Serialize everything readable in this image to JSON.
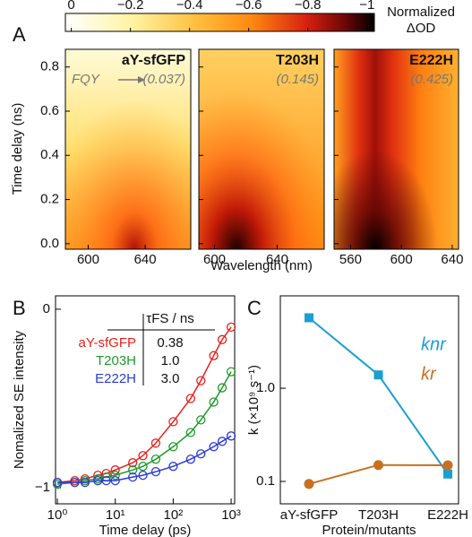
{
  "chart_data": [
    {
      "type": "heatmap",
      "panel_letter": "A",
      "colorbar_label": [
        "Normalized",
        "ΔOD"
      ],
      "clim": [
        0.02,
        -1.025
      ],
      "cticks": [
        0,
        {
          "value": -0.2,
          "label": "−0.2"
        },
        {
          "value": -0.4,
          "label": "−0.4"
        },
        {
          "value": -0.6,
          "label": "−0.6"
        },
        {
          "value": -0.8,
          "label": "−0.8"
        },
        {
          "value": -1,
          "label": "−1"
        }
      ],
      "ylabel": "Time delay (ns)",
      "xlabel": "Wavelength (nm)",
      "ylim": [
        -0.025,
        0.88
      ],
      "yticks": [
        {
          "value": 0,
          "label": "0.0"
        },
        0.2,
        0.4,
        0.6,
        0.8
      ],
      "fqy_label": "FQY",
      "panels": [
        {
          "title": "aY-sfGFP",
          "annotation": "(0.037)",
          "xlim": [
            584,
            672
          ],
          "xticks": [
            600,
            640
          ]
        },
        {
          "title": "T203H",
          "annotation": "(0.145)",
          "xlim": [
            590,
            670
          ],
          "xticks": [
            600,
            640
          ]
        },
        {
          "title": "E222H",
          "annotation": "(0.425)",
          "xlim": [
            547,
            645
          ],
          "xticks": [
            560,
            600,
            640
          ]
        }
      ]
    },
    {
      "type": "scatter",
      "panel_letter": "B",
      "xlabel": "Time delay (ps)",
      "ylabel": "Nomalized SE intensity",
      "xlog": true,
      "xlim": [
        0.93,
        1150
      ],
      "xticks": [
        {
          "value": 1,
          "label": "10⁰"
        },
        {
          "value": 10,
          "label": "10¹"
        },
        {
          "value": 100,
          "label": "10²"
        },
        {
          "value": 1000,
          "label": "10³"
        }
      ],
      "ylim": [
        -1.09,
        0.075
      ],
      "yticks": [
        0,
        {
          "value": -1,
          "label": "−1"
        }
      ],
      "x": [
        1,
        2,
        3,
        5,
        7,
        10,
        20,
        30,
        50,
        100,
        200,
        300,
        500,
        700,
        1000
      ],
      "series": [
        {
          "name": "aY-sfGFP",
          "color": "#e8201c",
          "values": [
            -0.97,
            -0.96,
            -0.95,
            -0.93,
            -0.92,
            -0.9,
            -0.86,
            -0.82,
            -0.75,
            -0.63,
            -0.5,
            -0.4,
            -0.26,
            -0.17,
            -0.1
          ]
        },
        {
          "name": "T203H",
          "color": "#1e9a2a",
          "values": [
            -0.98,
            -0.97,
            -0.96,
            -0.95,
            -0.94,
            -0.93,
            -0.9,
            -0.88,
            -0.84,
            -0.77,
            -0.69,
            -0.62,
            -0.52,
            -0.44,
            -0.35
          ]
        },
        {
          "name": "E222H",
          "color": "#2a3ad8",
          "values": [
            -0.97,
            -0.97,
            -0.97,
            -0.96,
            -0.96,
            -0.96,
            -0.94,
            -0.93,
            -0.91,
            -0.88,
            -0.84,
            -0.81,
            -0.77,
            -0.74,
            -0.71
          ]
        }
      ],
      "table_header": "τFS / ns",
      "table_values": [
        "0.38",
        "1.0",
        "3.0"
      ]
    },
    {
      "type": "line",
      "panel_letter": "C",
      "xlabel": "Protein/mutants",
      "ylabel": "k (×10⁹ s⁻¹)",
      "ylog": true,
      "ylim": [
        0.0575,
        9.8
      ],
      "yticks": [
        0.1,
        {
          "value": 1,
          "label": "1.0"
        }
      ],
      "categories": [
        "aY-sfGFP",
        "T203H",
        "E222H"
      ],
      "series": [
        {
          "name": "knr",
          "color": "#1a9fd0",
          "marker": "square",
          "values": [
            5.7,
            1.39,
            0.12
          ]
        },
        {
          "name": "kr",
          "color": "#c8701e",
          "marker": "circle",
          "values": [
            0.094,
            0.15,
            0.149
          ]
        }
      ]
    }
  ]
}
